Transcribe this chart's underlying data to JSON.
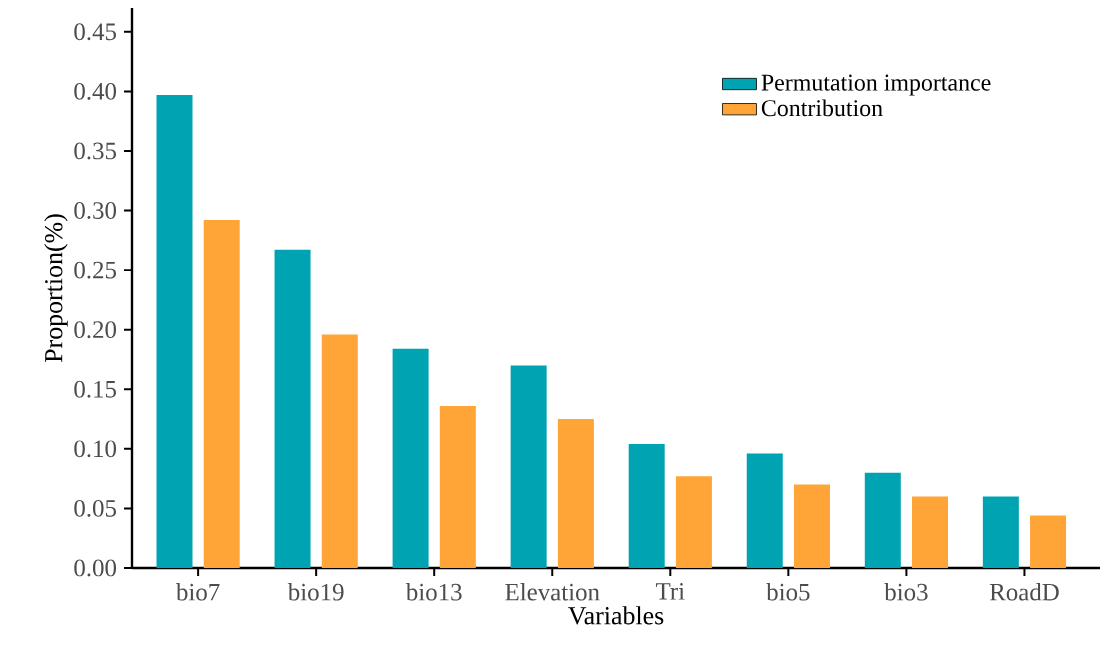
{
  "chart_data": {
    "type": "bar",
    "xlabel": "Variables",
    "ylabel": "Proportion(%)",
    "categories": [
      "bio7",
      "bio19",
      "bio13",
      "Elevation",
      "Tri",
      "bio5",
      "bio3",
      "RoadD"
    ],
    "series": [
      {
        "name": "Permutation importance",
        "color": "#00a3b2",
        "values": [
          0.397,
          0.267,
          0.184,
          0.17,
          0.104,
          0.096,
          0.08,
          0.06
        ]
      },
      {
        "name": "Contribution",
        "color": "#ffa436",
        "values": [
          0.292,
          0.196,
          0.136,
          0.125,
          0.077,
          0.07,
          0.06,
          0.044
        ]
      }
    ],
    "ylim": [
      0,
      0.47
    ],
    "yticks": [
      {
        "value": 0,
        "label": "0.00"
      },
      {
        "value": 0.05,
        "label": "0.05"
      },
      {
        "value": 0.1,
        "label": "0.10"
      },
      {
        "value": 0.15,
        "label": "0.15"
      },
      {
        "value": 0.2,
        "label": "0.20"
      },
      {
        "value": 0.25,
        "label": "0.25"
      },
      {
        "value": 0.3,
        "label": "0.30"
      },
      {
        "value": 0.35,
        "label": "0.35"
      },
      {
        "value": 0.4,
        "label": "0.40"
      },
      {
        "value": 0.45,
        "label": "0.45"
      }
    ],
    "legend": "top right",
    "grid": false
  }
}
